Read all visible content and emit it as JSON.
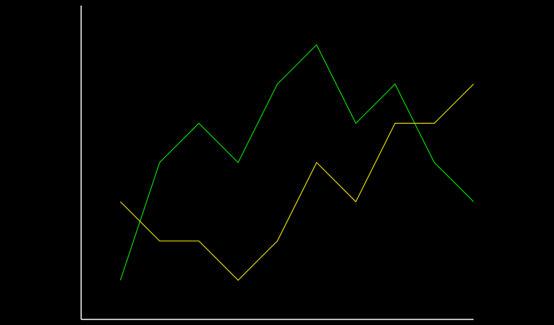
{
  "chart_data": {
    "type": "line",
    "title": "",
    "xlabel": "",
    "ylabel": "",
    "x": [
      1,
      2,
      3,
      4,
      5,
      6,
      7,
      8,
      9,
      10
    ],
    "ylim": [
      0,
      8
    ],
    "grid": false,
    "legend": "none",
    "series": [
      {
        "values": [
          1,
          4,
          5,
          4,
          6,
          7,
          5,
          6,
          4,
          3
        ],
        "color": "#00e000"
      },
      {
        "values": [
          3,
          2,
          2,
          1,
          2,
          4,
          3,
          5,
          5,
          6
        ],
        "color": "#e8e000"
      }
    ]
  },
  "colors": {
    "background": "#000000",
    "axis": "#ffffff"
  }
}
